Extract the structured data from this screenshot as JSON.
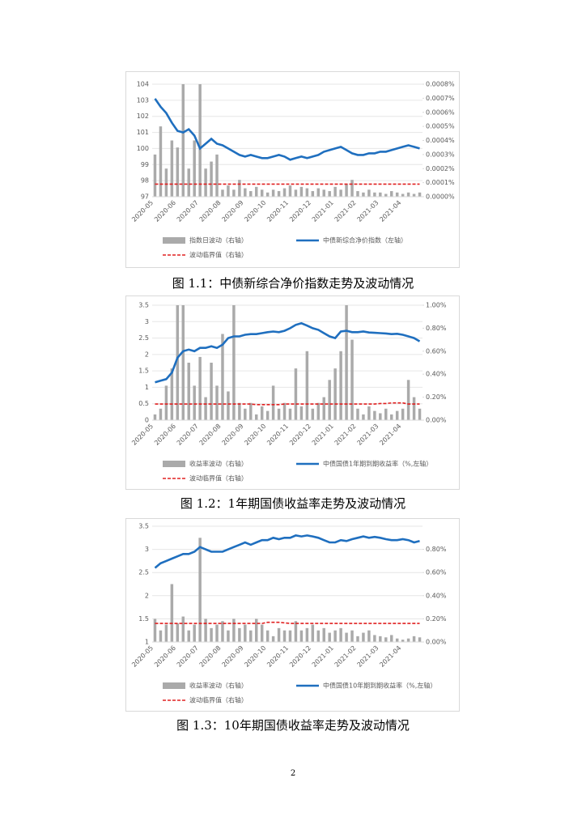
{
  "chart_data": [
    {
      "type": "combo",
      "caption": "图 1.1：中债新综合净价指数走势及波动情况",
      "categories": [
        "2020-05",
        null,
        null,
        null,
        "2020-06",
        null,
        null,
        null,
        "2020-07",
        null,
        null,
        null,
        "2020-08",
        null,
        null,
        null,
        "2020-09",
        null,
        null,
        null,
        "2020-10",
        null,
        null,
        null,
        "2020-11",
        null,
        null,
        null,
        "2020-12",
        null,
        null,
        null,
        "2021-01",
        null,
        null,
        null,
        "2021-02",
        null,
        null,
        null,
        "2021-03",
        null,
        null,
        null,
        "2021-04",
        null,
        null,
        null
      ],
      "ylim": [
        97,
        104
      ],
      "yticks": [
        97,
        98,
        99,
        100,
        101,
        102,
        103,
        104
      ],
      "y2lim": [
        0,
        0.0008
      ],
      "y2ticks": [
        {
          "value": 0,
          "label": "0.0000%"
        },
        {
          "value": 0.0001,
          "label": "0.0001%"
        },
        {
          "value": 0.0002,
          "label": "0.0002%"
        },
        {
          "value": 0.0003,
          "label": "0.0003%"
        },
        {
          "value": 0.0004,
          "label": "0.0004%"
        },
        {
          "value": 0.0005,
          "label": "0.0005%"
        },
        {
          "value": 0.0006,
          "label": "0.0006%"
        },
        {
          "value": 0.0007,
          "label": "0.0007%"
        },
        {
          "value": 0.0008,
          "label": "0.0008%"
        }
      ],
      "grid": true,
      "series": [
        {
          "name": "指数日波动（右轴）",
          "type": "bar",
          "axis": "y2",
          "color": "#aaaaaa",
          "values": [
            0.0003,
            0.0005,
            0.0002,
            0.0004,
            0.00035,
            0.0008,
            0.0002,
            0.0004,
            0.0008,
            0.0002,
            0.00025,
            0.0003,
            5e-05,
            8e-05,
            5e-05,
            0.00012,
            6e-05,
            4e-05,
            7e-05,
            5e-05,
            3e-05,
            5e-05,
            4e-05,
            6e-05,
            8e-05,
            5e-05,
            7e-05,
            6e-05,
            4e-05,
            6e-05,
            5e-05,
            4e-05,
            7e-05,
            5e-05,
            9e-05,
            0.00012,
            4e-05,
            3e-05,
            5e-05,
            3e-05,
            3e-05,
            2e-05,
            4e-05,
            3e-05,
            2e-05,
            3e-05,
            2e-05,
            3e-05
          ]
        },
        {
          "name": "中债新综合净价指数（左轴）",
          "type": "line",
          "axis": "y",
          "color": "#1f6fbf",
          "values": [
            103.1,
            102.6,
            102.2,
            101.6,
            101.1,
            101.0,
            101.2,
            100.8,
            100.0,
            100.3,
            100.6,
            100.3,
            100.2,
            100.0,
            99.8,
            99.6,
            99.5,
            99.6,
            99.5,
            99.4,
            99.4,
            99.5,
            99.6,
            99.5,
            99.3,
            99.4,
            99.5,
            99.4,
            99.5,
            99.6,
            99.8,
            99.9,
            100.0,
            100.1,
            99.9,
            99.7,
            99.6,
            99.6,
            99.7,
            99.7,
            99.8,
            99.8,
            99.9,
            100.0,
            100.1,
            100.2,
            100.1,
            100.0
          ]
        },
        {
          "name": "波动临界值（右轴）",
          "type": "line",
          "dashed": true,
          "axis": "y2",
          "color": "#e02020",
          "values": [
            9e-05,
            9e-05,
            9e-05,
            9e-05,
            9e-05,
            9e-05,
            9e-05,
            9e-05,
            9e-05,
            9e-05,
            9e-05,
            9e-05,
            9e-05,
            9e-05,
            9e-05,
            9e-05,
            9e-05,
            9e-05,
            9e-05,
            9e-05,
            9e-05,
            9e-05,
            9e-05,
            9e-05,
            9e-05,
            9e-05,
            9e-05,
            9e-05,
            9e-05,
            9e-05,
            9e-05,
            9e-05,
            9e-05,
            9e-05,
            9e-05,
            9e-05,
            9e-05,
            9e-05,
            9e-05,
            9e-05,
            9e-05,
            9e-05,
            9e-05,
            9e-05,
            9e-05,
            9e-05,
            9e-05,
            9e-05
          ]
        }
      ]
    },
    {
      "type": "combo",
      "caption": "图 1.2：1年期国债收益率走势及波动情况",
      "categories": [
        "2020-05",
        null,
        null,
        null,
        "2020-06",
        null,
        null,
        null,
        "2020-07",
        null,
        null,
        null,
        "2020-08",
        null,
        null,
        null,
        "2020-09",
        null,
        null,
        null,
        "2020-10",
        null,
        null,
        null,
        "2020-11",
        null,
        null,
        null,
        "2020-12",
        null,
        null,
        null,
        "2021-01",
        null,
        null,
        null,
        "2021-02",
        null,
        null,
        null,
        "2021-03",
        null,
        null,
        null,
        "2021-04",
        null,
        null,
        null
      ],
      "ylim": [
        0,
        3.5
      ],
      "yticks": [
        0,
        0.5,
        1,
        1.5,
        2,
        2.5,
        3,
        3.5
      ],
      "y2lim": [
        0,
        1
      ],
      "y2ticks": [
        {
          "value": 0,
          "label": "0.00%"
        },
        {
          "value": 0.2,
          "label": "0.20%"
        },
        {
          "value": 0.4,
          "label": "0.40%"
        },
        {
          "value": 0.6,
          "label": "0.60%"
        },
        {
          "value": 0.8,
          "label": "0.80%"
        },
        {
          "value": 1,
          "label": "1.00%"
        }
      ],
      "grid": true,
      "series": [
        {
          "name": "收益率波动（右轴）",
          "type": "bar",
          "axis": "y2",
          "color": "#aaaaaa",
          "values": [
            0.05,
            0.1,
            0.3,
            0.45,
            1.0,
            1.0,
            0.5,
            0.3,
            0.55,
            0.2,
            0.5,
            0.3,
            0.75,
            0.25,
            1.0,
            0.15,
            0.1,
            0.15,
            0.05,
            0.12,
            0.08,
            0.3,
            0.1,
            0.15,
            0.1,
            0.45,
            0.12,
            0.6,
            0.1,
            0.15,
            0.2,
            0.35,
            0.45,
            0.6,
            1.0,
            0.7,
            0.1,
            0.05,
            0.12,
            0.08,
            0.06,
            0.1,
            0.05,
            0.08,
            0.1,
            0.35,
            0.2,
            0.1
          ]
        },
        {
          "name": "中债国债1年期到期收益率（%,左轴）",
          "type": "line",
          "axis": "y",
          "color": "#1f6fbf",
          "values": [
            1.15,
            1.2,
            1.25,
            1.45,
            1.9,
            2.1,
            2.15,
            2.1,
            2.2,
            2.2,
            2.25,
            2.2,
            2.3,
            2.5,
            2.55,
            2.55,
            2.6,
            2.62,
            2.62,
            2.65,
            2.68,
            2.7,
            2.68,
            2.72,
            2.8,
            2.9,
            2.95,
            2.88,
            2.8,
            2.75,
            2.65,
            2.55,
            2.5,
            2.7,
            2.72,
            2.68,
            2.68,
            2.7,
            2.67,
            2.66,
            2.65,
            2.64,
            2.62,
            2.63,
            2.6,
            2.55,
            2.5,
            2.4
          ]
        },
        {
          "name": "波动临界值（右轴）",
          "type": "line",
          "dashed": true,
          "axis": "y2",
          "color": "#e02020",
          "values": [
            0.14,
            0.14,
            0.14,
            0.14,
            0.14,
            0.14,
            0.14,
            0.14,
            0.14,
            0.14,
            0.14,
            0.14,
            0.14,
            0.14,
            0.14,
            0.14,
            0.14,
            0.14,
            0.135,
            0.135,
            0.135,
            0.135,
            0.135,
            0.14,
            0.14,
            0.14,
            0.14,
            0.14,
            0.14,
            0.14,
            0.14,
            0.14,
            0.14,
            0.14,
            0.14,
            0.14,
            0.14,
            0.14,
            0.14,
            0.14,
            0.145,
            0.145,
            0.15,
            0.15,
            0.15,
            0.14,
            0.14,
            0.14
          ]
        }
      ]
    },
    {
      "type": "combo",
      "caption": "图 1.3：10年期国债收益率走势及波动情况",
      "categories": [
        "2020-05",
        null,
        null,
        null,
        "2020-06",
        null,
        null,
        null,
        "2020-07",
        null,
        null,
        null,
        "2020-08",
        null,
        null,
        null,
        "2020-09",
        null,
        null,
        null,
        "2020-10",
        null,
        null,
        null,
        "2020-11",
        null,
        null,
        null,
        "2020-12",
        null,
        null,
        null,
        "2021-01",
        null,
        null,
        null,
        "2021-02",
        null,
        null,
        null,
        "2021-03",
        null,
        null,
        null,
        "2021-04",
        null,
        null,
        null
      ],
      "ylim": [
        1,
        3.5
      ],
      "yticks": [
        1,
        1.5,
        2,
        2.5,
        3,
        3.5
      ],
      "y2lim": [
        0,
        1
      ],
      "y2ticks": [
        {
          "value": 0,
          "label": "0.00%"
        },
        {
          "value": 0.2,
          "label": "0.20%"
        },
        {
          "value": 0.4,
          "label": "0.40%"
        },
        {
          "value": 0.6,
          "label": "0.60%"
        },
        {
          "value": 0.8,
          "label": "0.80%"
        }
      ],
      "grid": true,
      "series": [
        {
          "name": "收益率波动（右轴）",
          "type": "bar",
          "axis": "y2",
          "color": "#aaaaaa",
          "values": [
            0.2,
            0.1,
            0.15,
            0.5,
            0.16,
            0.22,
            0.1,
            0.15,
            0.9,
            0.2,
            0.12,
            0.15,
            0.18,
            0.1,
            0.2,
            0.12,
            0.15,
            0.1,
            0.2,
            0.15,
            0.1,
            0.05,
            0.12,
            0.1,
            0.1,
            0.18,
            0.1,
            0.12,
            0.15,
            0.1,
            0.12,
            0.08,
            0.1,
            0.12,
            0.08,
            0.1,
            0.05,
            0.08,
            0.1,
            0.06,
            0.05,
            0.04,
            0.06,
            0.03,
            0.02,
            0.03,
            0.05,
            0.04
          ]
        },
        {
          "name": "中债国债10年期到期收益率（%,左轴）",
          "type": "line",
          "axis": "y",
          "color": "#1f6fbf",
          "values": [
            2.6,
            2.7,
            2.75,
            2.8,
            2.85,
            2.9,
            2.9,
            2.95,
            3.05,
            3.0,
            2.95,
            2.95,
            2.95,
            3.0,
            3.05,
            3.1,
            3.15,
            3.1,
            3.15,
            3.2,
            3.2,
            3.25,
            3.22,
            3.25,
            3.25,
            3.3,
            3.28,
            3.3,
            3.28,
            3.25,
            3.2,
            3.15,
            3.15,
            3.2,
            3.18,
            3.22,
            3.25,
            3.28,
            3.25,
            3.27,
            3.25,
            3.22,
            3.2,
            3.2,
            3.22,
            3.2,
            3.15,
            3.18
          ]
        },
        {
          "name": "波动临界值（右轴）",
          "type": "line",
          "dashed": true,
          "axis": "y2",
          "color": "#e02020",
          "values": [
            0.16,
            0.16,
            0.16,
            0.16,
            0.16,
            0.16,
            0.16,
            0.16,
            0.16,
            0.16,
            0.16,
            0.16,
            0.16,
            0.16,
            0.16,
            0.16,
            0.16,
            0.16,
            0.16,
            0.16,
            0.17,
            0.17,
            0.17,
            0.165,
            0.16,
            0.16,
            0.16,
            0.16,
            0.16,
            0.16,
            0.16,
            0.16,
            0.16,
            0.16,
            0.16,
            0.16,
            0.16,
            0.16,
            0.16,
            0.16,
            0.16,
            0.16,
            0.16,
            0.16,
            0.16,
            0.16,
            0.16,
            0.16
          ]
        }
      ]
    }
  ],
  "page_number": "2"
}
